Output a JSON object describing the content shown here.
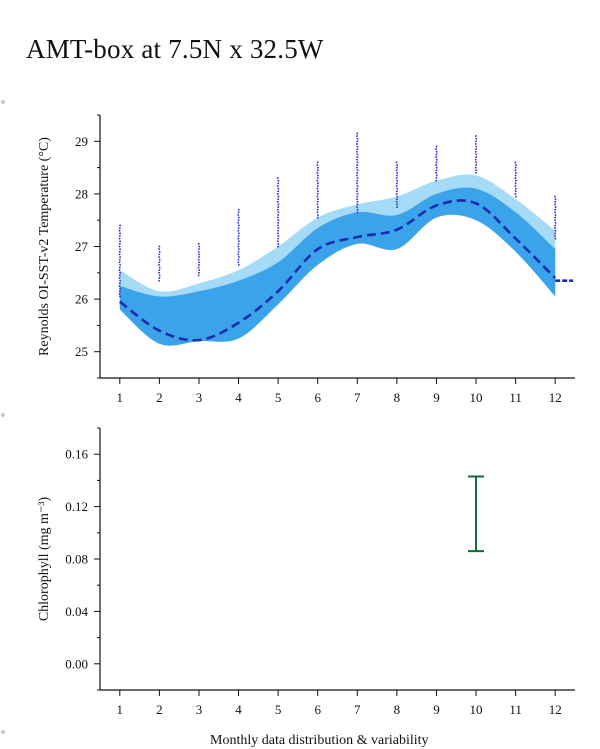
{
  "title": "AMT-box at 7.5N x 32.5W",
  "footer": "Monthly data distribution & variability",
  "colors": {
    "outer_band": "#a6dbf7",
    "inner_band": "#3aa3ea",
    "median_line": "#1a2bb0",
    "scatter": "#2a2adf",
    "errorbar": "#0f6b3a"
  },
  "chart_data": [
    {
      "type": "area",
      "ylabel": "Reynolds OI-SST-v2 Temperature (°C)",
      "xlabel": "",
      "x": [
        1,
        2,
        3,
        4,
        5,
        6,
        7,
        8,
        9,
        10,
        11,
        12
      ],
      "xlim": [
        0.5,
        12.5
      ],
      "ylim": [
        24.5,
        29.5
      ],
      "yticks": [
        25,
        26,
        27,
        28,
        29
      ],
      "grid": false,
      "series": [
        {
          "role": "outer_band",
          "upper": [
            26.55,
            26.15,
            26.3,
            26.55,
            27.0,
            27.55,
            27.8,
            27.95,
            28.25,
            28.35,
            27.9,
            27.3
          ],
          "lower": [
            25.85,
            25.2,
            25.25,
            25.3,
            25.95,
            26.7,
            27.1,
            27.0,
            27.6,
            27.55,
            26.95,
            26.15
          ]
        },
        {
          "role": "inner_band",
          "upper": [
            26.25,
            26.05,
            26.15,
            26.35,
            26.7,
            27.35,
            27.65,
            27.6,
            28.0,
            28.1,
            27.65,
            26.95
          ],
          "lower": [
            25.8,
            25.15,
            25.2,
            25.25,
            25.9,
            26.65,
            27.05,
            26.95,
            27.55,
            27.5,
            26.9,
            26.05
          ]
        },
        {
          "role": "median",
          "values": [
            25.95,
            25.4,
            25.22,
            25.55,
            26.15,
            26.95,
            27.18,
            27.32,
            27.78,
            27.82,
            27.15,
            26.4
          ]
        }
      ],
      "monthly_max": [
        27.4,
        27.0,
        27.05,
        27.7,
        28.3,
        28.6,
        29.15,
        28.6,
        28.9,
        29.1,
        28.6,
        27.95
      ],
      "monthly_min": [
        26.0,
        26.3,
        26.4,
        26.6,
        26.95,
        27.5,
        27.6,
        27.7,
        28.2,
        28.35,
        27.9,
        27.1
      ],
      "tail": [
        26.35,
        26.35
      ]
    },
    {
      "type": "errorbar",
      "ylabel": "Chlorophyll (mg m⁻³)",
      "xlabel": "",
      "x": [
        1,
        2,
        3,
        4,
        5,
        6,
        7,
        8,
        9,
        10,
        11,
        12
      ],
      "xlim": [
        0.5,
        12.5
      ],
      "ylim": [
        -0.02,
        0.18
      ],
      "yticks": [
        0.0,
        0.04,
        0.08,
        0.12,
        0.16
      ],
      "ytick_labels": [
        "0.00",
        "0.04",
        "0.08",
        "0.12",
        "0.16"
      ],
      "grid": false,
      "errorbars": [
        {
          "x": 10,
          "low": 0.086,
          "high": 0.143
        }
      ]
    }
  ]
}
